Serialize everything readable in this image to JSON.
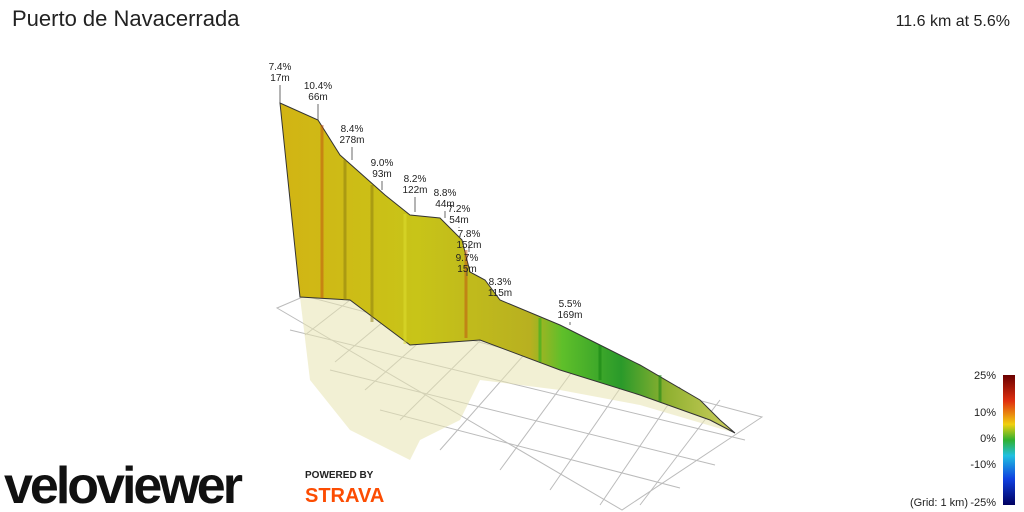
{
  "header": {
    "title": "Puerto de Navacerrada",
    "summary": "11.6 km at 5.6%"
  },
  "annotations": [
    {
      "grade": "7.4%",
      "length": "17m"
    },
    {
      "grade": "10.4%",
      "length": "66m"
    },
    {
      "grade": "8.4%",
      "length": "278m"
    },
    {
      "grade": "9.0%",
      "length": "93m"
    },
    {
      "grade": "8.2%",
      "length": "122m"
    },
    {
      "grade": "8.8%",
      "length": "44m"
    },
    {
      "grade": "7.2%",
      "length": "54m"
    },
    {
      "grade": "7.8%",
      "length": "152m"
    },
    {
      "grade": "9.7%",
      "length": "15m"
    },
    {
      "grade": "8.3%",
      "length": "115m"
    },
    {
      "grade": "5.5%",
      "length": "169m"
    }
  ],
  "legend": {
    "ticks": [
      "25%",
      "10%",
      "0%",
      "-10%",
      "-25%"
    ],
    "grid_note": "(Grid: 1 km)"
  },
  "branding": {
    "logo": "veloviewer",
    "powered_by": "POWERED BY",
    "partner": "STRAVA"
  }
}
